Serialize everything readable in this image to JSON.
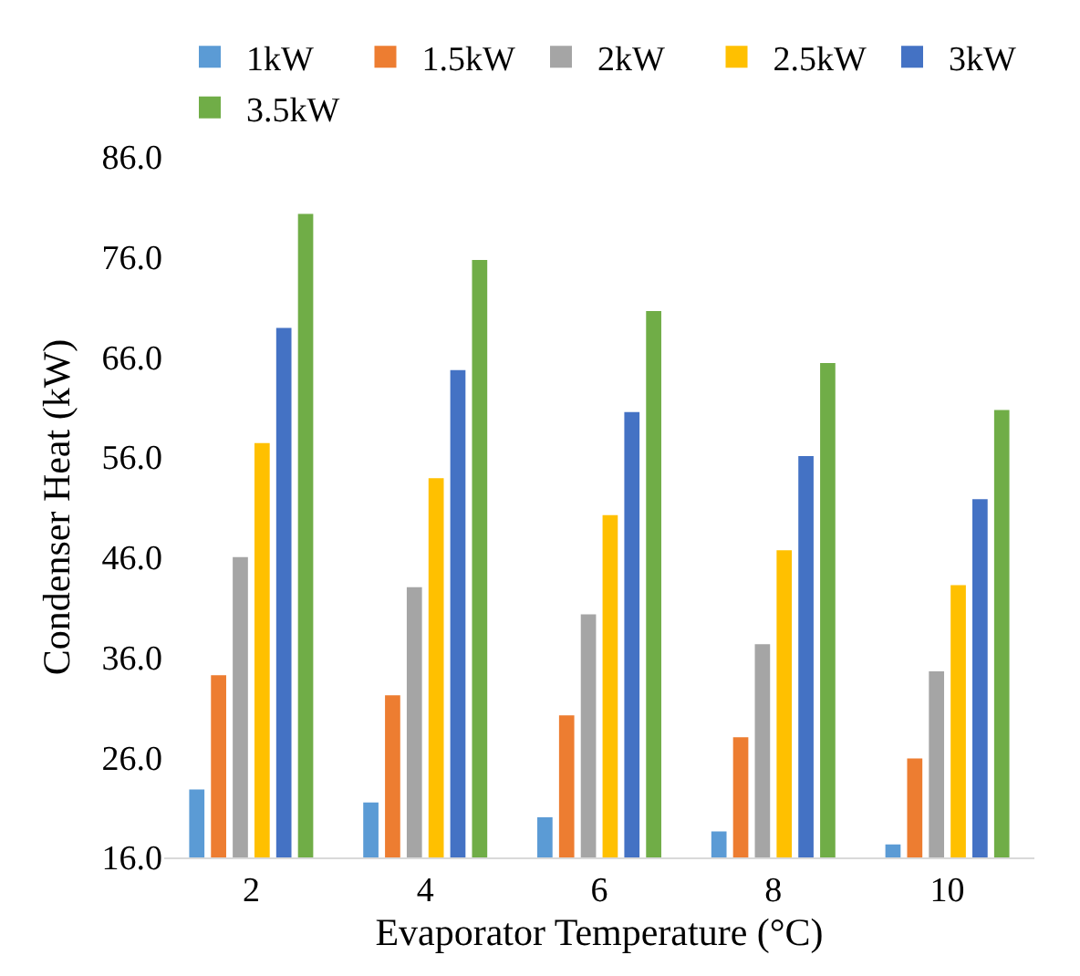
{
  "chart_data": {
    "type": "bar",
    "xlabel": "Evaporator Temperature (°C)",
    "ylabel": "Condenser Heat (kW)",
    "categories": [
      "2",
      "4",
      "6",
      "8",
      "10"
    ],
    "series": [
      {
        "name": "1kW",
        "color": "#5b9bd5",
        "values": [
          22.8,
          21.5,
          20.0,
          18.6,
          17.3
        ]
      },
      {
        "name": "1.5kW",
        "color": "#ed7d31",
        "values": [
          34.2,
          32.2,
          30.2,
          28.0,
          25.9
        ]
      },
      {
        "name": "2kW",
        "color": "#a5a5a5",
        "values": [
          46.0,
          43.0,
          40.3,
          37.3,
          34.6
        ]
      },
      {
        "name": "2.5kW",
        "color": "#ffc000",
        "values": [
          57.4,
          53.9,
          50.2,
          46.7,
          43.2
        ]
      },
      {
        "name": "3kW",
        "color": "#4472c4",
        "values": [
          68.9,
          64.7,
          60.5,
          56.1,
          51.8
        ]
      },
      {
        "name": "3.5kW",
        "color": "#70ad47",
        "values": [
          80.3,
          75.7,
          70.6,
          65.4,
          60.7
        ]
      }
    ],
    "ylim": [
      16,
      86
    ],
    "yticks": [
      {
        "value": 16,
        "label": "16.0"
      },
      {
        "value": 26,
        "label": "26.0"
      },
      {
        "value": 36,
        "label": "36.0"
      },
      {
        "value": 46,
        "label": "46.0"
      },
      {
        "value": 56,
        "label": "56.0"
      },
      {
        "value": 66,
        "label": "66.0"
      },
      {
        "value": 76,
        "label": "76.0"
      },
      {
        "value": 86,
        "label": "86.0"
      }
    ],
    "grid": false,
    "legend": "top"
  }
}
